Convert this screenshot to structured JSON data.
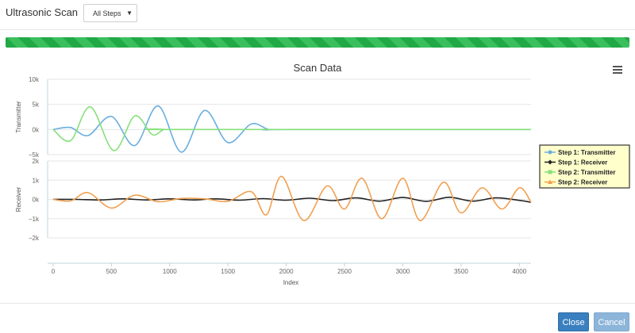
{
  "header": {
    "title": "Ultrasonic Scan",
    "step_select": "All Steps"
  },
  "progress": {
    "percent": 100,
    "color": "#22a947"
  },
  "chart_data": {
    "title": "Scan Data",
    "type": "line",
    "xlabel": "Index",
    "x_ticks": [
      "0",
      "500",
      "1000",
      "1500",
      "2000",
      "2500",
      "3000",
      "3500",
      "4000"
    ],
    "xlim": [
      -20,
      4100
    ],
    "legend_position": "right",
    "panels": [
      {
        "ylabel": "Transmitter",
        "ylim": [
          -5000,
          10000
        ],
        "y_ticks": [
          "10k",
          "5k",
          "0k",
          "−5k"
        ]
      },
      {
        "ylabel": "Receiver",
        "ylim": [
          -2000,
          2000
        ],
        "y_ticks": [
          "2k",
          "1k",
          "0k",
          "−1k",
          "−2k"
        ]
      }
    ],
    "series": [
      {
        "name": "Step 1: Transmitter",
        "panel": 0,
        "color": "#6aaee0",
        "marker": "circle",
        "x": [
          0,
          150,
          300,
          500,
          700,
          900,
          1100,
          1300,
          1500,
          1700,
          1850,
          2000,
          4100
        ],
        "y": [
          0,
          400,
          -1200,
          2600,
          -3200,
          4700,
          -4500,
          3800,
          -2600,
          1100,
          0,
          0,
          0
        ]
      },
      {
        "name": "Step 1: Receiver",
        "panel": 1,
        "color": "#222222",
        "marker": "diamond",
        "x": [
          0,
          200,
          400,
          600,
          800,
          1000,
          1200,
          1400,
          1600,
          1800,
          2000,
          2200,
          2400,
          2600,
          2800,
          3000,
          3200,
          3400,
          3600,
          3800,
          4000,
          4100
        ],
        "y": [
          0,
          0,
          -30,
          30,
          -30,
          30,
          -30,
          30,
          -40,
          40,
          -40,
          60,
          -60,
          80,
          -90,
          100,
          -100,
          110,
          -90,
          80,
          -50,
          -150
        ]
      },
      {
        "name": "Step 2: Transmitter",
        "panel": 0,
        "color": "#86e07a",
        "marker": "square",
        "x": [
          0,
          150,
          320,
          520,
          700,
          850,
          950,
          1050,
          4100
        ],
        "y": [
          0,
          -2200,
          4500,
          -4200,
          2700,
          -1000,
          0,
          0,
          0
        ]
      },
      {
        "name": "Step 2: Receiver",
        "panel": 1,
        "color": "#f0a050",
        "marker": "triangle",
        "x": [
          0,
          150,
          300,
          500,
          700,
          900,
          1100,
          1300,
          1500,
          1700,
          1830,
          1960,
          2150,
          2350,
          2500,
          2650,
          2820,
          3000,
          3150,
          3350,
          3500,
          3680,
          3850,
          4000,
          4100
        ],
        "y": [
          0,
          -80,
          350,
          -450,
          220,
          -120,
          50,
          30,
          -100,
          400,
          -800,
          1200,
          -1100,
          700,
          -500,
          1100,
          -1000,
          1100,
          -1100,
          900,
          -700,
          600,
          -500,
          600,
          -150
        ]
      }
    ]
  },
  "footer": {
    "close_label": "Close",
    "cancel_label": "Cancel"
  }
}
